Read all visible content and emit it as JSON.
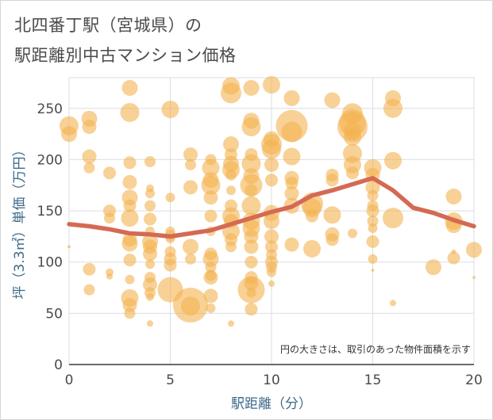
{
  "title_line1": "北四番丁駅（宮城県）の",
  "title_line2": "駅距離別中古マンション価格",
  "colors": {
    "bubble": "#f4b350",
    "trend": "#d46a54",
    "grid": "#d9dde3",
    "axis_title": "#3d6a8a"
  },
  "chart_data": {
    "type": "scatter",
    "xlabel": "駅距離（分）",
    "ylabel": "坪（3.3㎡）単価（万円）",
    "xlim": [
      0,
      20
    ],
    "ylim": [
      0,
      280
    ],
    "xticks": [
      "0",
      "5",
      "10",
      "15",
      "20"
    ],
    "yticks": [
      "0",
      "50",
      "100",
      "150",
      "200",
      "250"
    ],
    "grid": true,
    "note": "円の大きさは、取引のあった物件面積を示す",
    "trend": {
      "x": [
        0,
        1,
        2,
        3,
        4,
        5,
        6,
        7,
        8,
        9,
        10,
        11,
        12,
        13,
        14,
        15,
        16,
        17,
        18,
        19,
        20
      ],
      "y": [
        137,
        135,
        132,
        128,
        127,
        125,
        128,
        131,
        137,
        143,
        149,
        154,
        165,
        170,
        176,
        182,
        170,
        153,
        148,
        141,
        135
      ]
    },
    "points": [
      {
        "x": 0,
        "y": 233,
        "s": 12
      },
      {
        "x": 0,
        "y": 225,
        "s": 10
      },
      {
        "x": 0,
        "y": 115,
        "s": 2
      },
      {
        "x": 1,
        "y": 240,
        "s": 10
      },
      {
        "x": 1,
        "y": 232,
        "s": 9
      },
      {
        "x": 1,
        "y": 203,
        "s": 9
      },
      {
        "x": 1,
        "y": 192,
        "s": 7
      },
      {
        "x": 1,
        "y": 93,
        "s": 8
      },
      {
        "x": 1,
        "y": 73,
        "s": 7
      },
      {
        "x": 2,
        "y": 187,
        "s": 8
      },
      {
        "x": 2,
        "y": 150,
        "s": 8
      },
      {
        "x": 2,
        "y": 143,
        "s": 7
      },
      {
        "x": 2,
        "y": 90,
        "s": 5
      },
      {
        "x": 2,
        "y": 86,
        "s": 4
      },
      {
        "x": 3,
        "y": 270,
        "s": 10
      },
      {
        "x": 3,
        "y": 246,
        "s": 12
      },
      {
        "x": 3,
        "y": 197,
        "s": 8
      },
      {
        "x": 3,
        "y": 178,
        "s": 9
      },
      {
        "x": 3,
        "y": 163,
        "s": 10
      },
      {
        "x": 3,
        "y": 155,
        "s": 8
      },
      {
        "x": 3,
        "y": 143,
        "s": 11
      },
      {
        "x": 3,
        "y": 122,
        "s": 9
      },
      {
        "x": 3,
        "y": 118,
        "s": 10
      },
      {
        "x": 3,
        "y": 102,
        "s": 8
      },
      {
        "x": 3,
        "y": 83,
        "s": 6
      },
      {
        "x": 3,
        "y": 65,
        "s": 11
      },
      {
        "x": 3,
        "y": 58,
        "s": 9
      },
      {
        "x": 3,
        "y": 50,
        "s": 7
      },
      {
        "x": 4,
        "y": 198,
        "s": 7
      },
      {
        "x": 4,
        "y": 172,
        "s": 5
      },
      {
        "x": 4,
        "y": 167,
        "s": 6
      },
      {
        "x": 4,
        "y": 155,
        "s": 7
      },
      {
        "x": 4,
        "y": 142,
        "s": 8
      },
      {
        "x": 4,
        "y": 130,
        "s": 6
      },
      {
        "x": 4,
        "y": 120,
        "s": 10
      },
      {
        "x": 4,
        "y": 115,
        "s": 9
      },
      {
        "x": 4,
        "y": 108,
        "s": 9
      },
      {
        "x": 4,
        "y": 98,
        "s": 6
      },
      {
        "x": 4,
        "y": 85,
        "s": 7
      },
      {
        "x": 4,
        "y": 78,
        "s": 9
      },
      {
        "x": 4,
        "y": 70,
        "s": 7
      },
      {
        "x": 4,
        "y": 66,
        "s": 5
      },
      {
        "x": 4,
        "y": 40,
        "s": 4
      },
      {
        "x": 5,
        "y": 249,
        "s": 11
      },
      {
        "x": 5,
        "y": 163,
        "s": 6
      },
      {
        "x": 5,
        "y": 130,
        "s": 6
      },
      {
        "x": 5,
        "y": 126,
        "s": 7
      },
      {
        "x": 5,
        "y": 123,
        "s": 6
      },
      {
        "x": 5,
        "y": 110,
        "s": 7
      },
      {
        "x": 5,
        "y": 103,
        "s": 8
      },
      {
        "x": 5,
        "y": 97,
        "s": 8
      },
      {
        "x": 5,
        "y": 73,
        "s": 16
      },
      {
        "x": 6,
        "y": 205,
        "s": 9
      },
      {
        "x": 6,
        "y": 195,
        "s": 7
      },
      {
        "x": 6,
        "y": 173,
        "s": 9
      },
      {
        "x": 6,
        "y": 115,
        "s": 10
      },
      {
        "x": 6,
        "y": 103,
        "s": 7
      },
      {
        "x": 6,
        "y": 58,
        "s": 22
      },
      {
        "x": 6,
        "y": 57,
        "s": 12
      },
      {
        "x": 7,
        "y": 200,
        "s": 7
      },
      {
        "x": 7,
        "y": 192,
        "s": 11
      },
      {
        "x": 7,
        "y": 180,
        "s": 10
      },
      {
        "x": 7,
        "y": 175,
        "s": 12
      },
      {
        "x": 7,
        "y": 163,
        "s": 9
      },
      {
        "x": 7,
        "y": 145,
        "s": 8
      },
      {
        "x": 7,
        "y": 130,
        "s": 6
      },
      {
        "x": 7,
        "y": 108,
        "s": 8
      },
      {
        "x": 7,
        "y": 103,
        "s": 10
      },
      {
        "x": 7,
        "y": 95,
        "s": 7
      },
      {
        "x": 7,
        "y": 87,
        "s": 7
      },
      {
        "x": 7,
        "y": 85,
        "s": 9
      },
      {
        "x": 7,
        "y": 67,
        "s": 9
      },
      {
        "x": 7,
        "y": 55,
        "s": 6
      },
      {
        "x": 8,
        "y": 272,
        "s": 11
      },
      {
        "x": 8,
        "y": 265,
        "s": 13
      },
      {
        "x": 8,
        "y": 215,
        "s": 10
      },
      {
        "x": 8,
        "y": 205,
        "s": 8
      },
      {
        "x": 8,
        "y": 196,
        "s": 10
      },
      {
        "x": 8,
        "y": 190,
        "s": 11
      },
      {
        "x": 8,
        "y": 185,
        "s": 7
      },
      {
        "x": 8,
        "y": 170,
        "s": 6
      },
      {
        "x": 8,
        "y": 155,
        "s": 8
      },
      {
        "x": 8,
        "y": 145,
        "s": 11
      },
      {
        "x": 8,
        "y": 140,
        "s": 9
      },
      {
        "x": 8,
        "y": 130,
        "s": 11
      },
      {
        "x": 8,
        "y": 122,
        "s": 8
      },
      {
        "x": 8,
        "y": 115,
        "s": 7
      },
      {
        "x": 8,
        "y": 40,
        "s": 4
      },
      {
        "x": 9,
        "y": 270,
        "s": 10
      },
      {
        "x": 9,
        "y": 238,
        "s": 10
      },
      {
        "x": 9,
        "y": 232,
        "s": 12
      },
      {
        "x": 9,
        "y": 205,
        "s": 8
      },
      {
        "x": 9,
        "y": 196,
        "s": 12
      },
      {
        "x": 9,
        "y": 184,
        "s": 10
      },
      {
        "x": 9,
        "y": 175,
        "s": 14
      },
      {
        "x": 9,
        "y": 170,
        "s": 8
      },
      {
        "x": 9,
        "y": 155,
        "s": 12
      },
      {
        "x": 9,
        "y": 140,
        "s": 11
      },
      {
        "x": 9,
        "y": 133,
        "s": 11
      },
      {
        "x": 9,
        "y": 125,
        "s": 9
      },
      {
        "x": 9,
        "y": 115,
        "s": 9
      },
      {
        "x": 9,
        "y": 100,
        "s": 8
      },
      {
        "x": 9,
        "y": 85,
        "s": 8
      },
      {
        "x": 9,
        "y": 79,
        "s": 9
      },
      {
        "x": 9,
        "y": 73,
        "s": 17
      },
      {
        "x": 9,
        "y": 70,
        "s": 6
      },
      {
        "x": 9,
        "y": 54,
        "s": 8
      },
      {
        "x": 10,
        "y": 273,
        "s": 11
      },
      {
        "x": 10,
        "y": 220,
        "s": 10
      },
      {
        "x": 10,
        "y": 215,
        "s": 13
      },
      {
        "x": 10,
        "y": 210,
        "s": 12
      },
      {
        "x": 10,
        "y": 195,
        "s": 9
      },
      {
        "x": 10,
        "y": 180,
        "s": 8
      },
      {
        "x": 10,
        "y": 148,
        "s": 10
      },
      {
        "x": 10,
        "y": 140,
        "s": 10
      },
      {
        "x": 10,
        "y": 125,
        "s": 9
      },
      {
        "x": 10,
        "y": 115,
        "s": 8
      },
      {
        "x": 10,
        "y": 107,
        "s": 7
      },
      {
        "x": 10,
        "y": 100,
        "s": 8
      },
      {
        "x": 10,
        "y": 95,
        "s": 7
      },
      {
        "x": 10,
        "y": 90,
        "s": 6
      },
      {
        "x": 10,
        "y": 79,
        "s": 4
      },
      {
        "x": 11,
        "y": 260,
        "s": 10
      },
      {
        "x": 11,
        "y": 233,
        "s": 20
      },
      {
        "x": 11,
        "y": 227,
        "s": 13
      },
      {
        "x": 11,
        "y": 203,
        "s": 11
      },
      {
        "x": 11,
        "y": 182,
        "s": 9
      },
      {
        "x": 11,
        "y": 177,
        "s": 8
      },
      {
        "x": 11,
        "y": 167,
        "s": 9
      },
      {
        "x": 11,
        "y": 155,
        "s": 10
      },
      {
        "x": 11,
        "y": 117,
        "s": 9
      },
      {
        "x": 12,
        "y": 157,
        "s": 14
      },
      {
        "x": 12,
        "y": 153,
        "s": 12
      },
      {
        "x": 12,
        "y": 145,
        "s": 8
      },
      {
        "x": 12,
        "y": 113,
        "s": 11
      },
      {
        "x": 13,
        "y": 258,
        "s": 10
      },
      {
        "x": 13,
        "y": 185,
        "s": 8
      },
      {
        "x": 13,
        "y": 180,
        "s": 8
      },
      {
        "x": 13,
        "y": 146,
        "s": 11
      },
      {
        "x": 13,
        "y": 127,
        "s": 9
      },
      {
        "x": 13,
        "y": 122,
        "s": 8
      },
      {
        "x": 14,
        "y": 245,
        "s": 13
      },
      {
        "x": 14,
        "y": 236,
        "s": 17
      },
      {
        "x": 14,
        "y": 232,
        "s": 19
      },
      {
        "x": 14,
        "y": 228,
        "s": 11
      },
      {
        "x": 14,
        "y": 222,
        "s": 11
      },
      {
        "x": 14,
        "y": 206,
        "s": 12
      },
      {
        "x": 14,
        "y": 195,
        "s": 11
      },
      {
        "x": 14,
        "y": 187,
        "s": 8
      },
      {
        "x": 14,
        "y": 128,
        "s": 6
      },
      {
        "x": 15,
        "y": 192,
        "s": 11
      },
      {
        "x": 15,
        "y": 185,
        "s": 9
      },
      {
        "x": 15,
        "y": 173,
        "s": 9
      },
      {
        "x": 15,
        "y": 165,
        "s": 7
      },
      {
        "x": 15,
        "y": 155,
        "s": 7
      },
      {
        "x": 15,
        "y": 150,
        "s": 8
      },
      {
        "x": 15,
        "y": 140,
        "s": 7
      },
      {
        "x": 15,
        "y": 133,
        "s": 6
      },
      {
        "x": 15,
        "y": 120,
        "s": 8
      },
      {
        "x": 15,
        "y": 103,
        "s": 6
      },
      {
        "x": 15,
        "y": 92,
        "s": 2
      },
      {
        "x": 16,
        "y": 260,
        "s": 10
      },
      {
        "x": 16,
        "y": 250,
        "s": 12
      },
      {
        "x": 16,
        "y": 199,
        "s": 11
      },
      {
        "x": 16,
        "y": 143,
        "s": 13
      },
      {
        "x": 16,
        "y": 60,
        "s": 4
      },
      {
        "x": 18,
        "y": 95,
        "s": 10
      },
      {
        "x": 19,
        "y": 164,
        "s": 10
      },
      {
        "x": 19,
        "y": 140,
        "s": 11
      },
      {
        "x": 19,
        "y": 136,
        "s": 10
      },
      {
        "x": 19,
        "y": 110,
        "s": 3
      },
      {
        "x": 19,
        "y": 104,
        "s": 8
      },
      {
        "x": 20,
        "y": 112,
        "s": 10
      },
      {
        "x": 20,
        "y": 85,
        "s": 2
      }
    ]
  }
}
